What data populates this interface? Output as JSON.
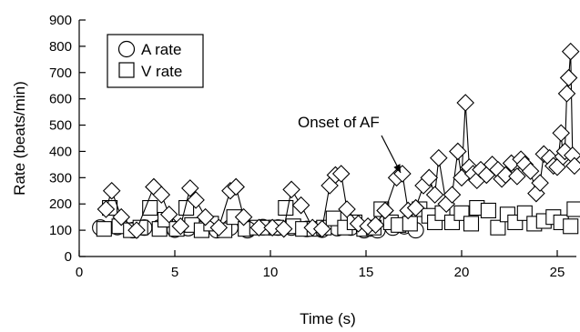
{
  "chart_data": {
    "type": "scatter",
    "xlabel": "Time (s)",
    "ylabel": "Rate (beats/min)",
    "xlim": [
      0,
      26
    ],
    "ylim": [
      0,
      900
    ],
    "xticks": [
      "0",
      "5",
      "10",
      "15",
      "20",
      "25"
    ],
    "yticks": [
      "0",
      "100",
      "200",
      "300",
      "400",
      "500",
      "600",
      "700",
      "800",
      "900"
    ],
    "grid": false,
    "legend": {
      "placement": "top-left"
    },
    "annotation": {
      "text": "Onset of AF",
      "x": 17.0,
      "y": 300
    },
    "series": [
      {
        "name": "A rate",
        "marker": "circle",
        "x": [
          1.1,
          2.0,
          2.8,
          3.4,
          4.2,
          5.0,
          5.7,
          6.4,
          7.2,
          7.9,
          8.8,
          9.6,
          10.4,
          11.1,
          11.9,
          12.7,
          13.5,
          14.2,
          14.9,
          15.6,
          16.4,
          17.0,
          17.6
        ],
        "y": [
          110,
          112,
          100,
          110,
          110,
          102,
          108,
          105,
          100,
          110,
          100,
          112,
          110,
          110,
          105,
          102,
          108,
          110,
          100,
          100,
          110,
          115,
          100
        ],
        "connect": false
      },
      {
        "name": "V rate",
        "marker": "square",
        "x": [
          1.3,
          1.6,
          2.1,
          2.7,
          3.2,
          3.7,
          4.2,
          4.5,
          5.1,
          5.6,
          5.9,
          6.4,
          6.9,
          7.6,
          8.1,
          8.7,
          9.3,
          9.8,
          10.3,
          10.8,
          11.2,
          11.7,
          12.3,
          12.8,
          13.3,
          13.9,
          14.4,
          14.9,
          15.4,
          15.8,
          16.3,
          16.7,
          17.3,
          17.8,
          18.3,
          18.6,
          19.0,
          19.5,
          20.0,
          20.5,
          20.8,
          21.4,
          21.9,
          22.4,
          22.8,
          23.3,
          23.8,
          24.3,
          24.8,
          25.2,
          25.7,
          25.9
        ],
        "y": [
          105,
          185,
          115,
          100,
          110,
          185,
          105,
          140,
          105,
          185,
          120,
          100,
          125,
          100,
          150,
          105,
          110,
          110,
          110,
          185,
          115,
          105,
          105,
          110,
          145,
          110,
          130,
          105,
          110,
          180,
          130,
          120,
          125,
          180,
          155,
          130,
          165,
          130,
          165,
          125,
          185,
          175,
          110,
          160,
          130,
          165,
          125,
          135,
          150,
          130,
          115,
          180
        ],
        "connect": false
      },
      {
        "name": "",
        "marker": "diamond",
        "x": [
          1.4,
          1.7,
          2.2,
          3.0,
          3.9,
          4.3,
          4.7,
          5.3,
          5.8,
          6.1,
          6.6,
          7.3,
          7.9,
          8.2,
          8.6,
          9.4,
          10.1,
          10.7,
          11.1,
          11.6,
          12.2,
          12.7,
          13.1,
          13.4,
          13.7,
          14.0,
          14.6,
          15.1,
          15.5,
          16.0,
          16.6,
          16.9,
          17.2,
          17.6,
          18.0,
          18.3,
          18.6,
          18.8,
          19.2,
          19.5,
          19.8,
          20.0,
          20.2,
          20.4,
          20.6,
          20.8,
          21.0,
          21.3,
          21.6,
          21.9,
          22.1,
          22.3,
          22.6,
          22.9,
          23.1,
          23.3,
          23.6,
          23.9,
          24.1,
          24.3,
          24.6,
          24.8,
          25.0,
          25.2,
          25.3,
          25.4,
          25.5,
          25.6,
          25.7,
          25.8,
          25.9
        ],
        "y": [
          180,
          250,
          150,
          100,
          265,
          235,
          160,
          115,
          260,
          215,
          150,
          110,
          250,
          265,
          150,
          110,
          110,
          105,
          255,
          195,
          110,
          105,
          270,
          310,
          315,
          180,
          125,
          115,
          120,
          175,
          300,
          315,
          175,
          185,
          270,
          300,
          235,
          375,
          200,
          235,
          400,
          300,
          585,
          340,
          315,
          290,
          330,
          310,
          350,
          330,
          295,
          310,
          355,
          305,
          370,
          350,
          325,
          240,
          280,
          390,
          375,
          345,
          340,
          470,
          380,
          400,
          620,
          680,
          780,
          385,
          345
        ],
        "connect": true
      }
    ]
  },
  "legend_items": [
    {
      "label": "A rate",
      "marker": "circle"
    },
    {
      "label": "V rate",
      "marker": "square"
    }
  ]
}
